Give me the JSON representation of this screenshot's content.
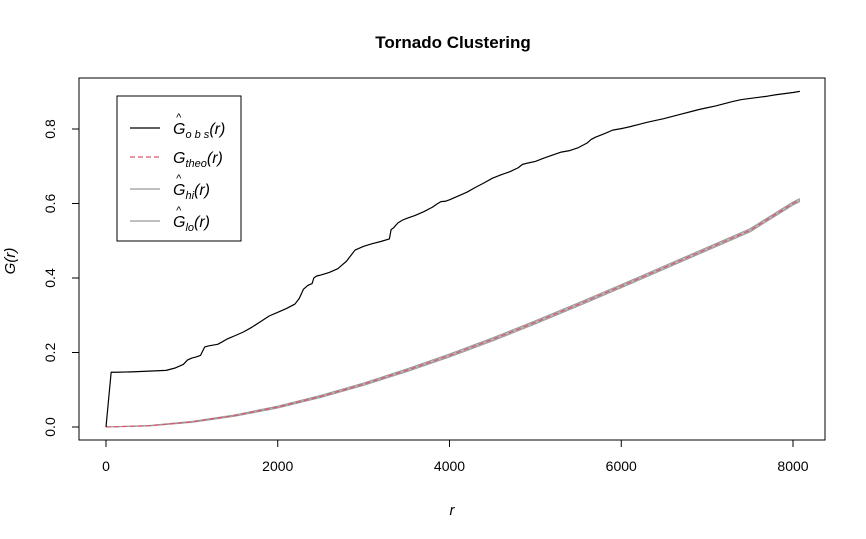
{
  "chart_data": {
    "type": "line",
    "title": "Tornado Clustering",
    "xlabel": "r",
    "ylabel": "G(r)",
    "xlim": [
      0,
      8100
    ],
    "ylim": [
      0,
      0.9
    ],
    "x_ticks": [
      0,
      2000,
      4000,
      6000,
      8000
    ],
    "y_ticks": [
      0.0,
      0.2,
      0.4,
      0.6,
      0.8
    ],
    "x_tick_labels": [
      "0",
      "2000",
      "4000",
      "6000",
      "8000"
    ],
    "y_tick_labels": [
      "0.0",
      "0.2",
      "0.4",
      "0.6",
      "0.8"
    ],
    "grid": false,
    "legend_position": "top-left",
    "legend": [
      {
        "hat": "^",
        "main": "G",
        "sub": "o b s",
        "arg": "(r)"
      },
      {
        "hat": "",
        "main": "G",
        "sub": "theo",
        "arg": "(r)"
      },
      {
        "hat": "^",
        "main": "G",
        "sub": "hi",
        "arg": "(r)"
      },
      {
        "hat": "^",
        "main": "G",
        "sub": "lo",
        "arg": "(r)"
      }
    ],
    "colors": {
      "obs": "#000000",
      "theo": "#df536b",
      "band": "#b8b8b8"
    },
    "series": [
      {
        "key": "obs",
        "style": "solid",
        "x": [
          0,
          60,
          120,
          300,
          500,
          700,
          800,
          900,
          950,
          1000,
          1050,
          1100,
          1150,
          1200,
          1300,
          1350,
          1400,
          1450,
          1500,
          1600,
          1700,
          1800,
          1900,
          2000,
          2100,
          2200,
          2250,
          2300,
          2350,
          2400,
          2420,
          2450,
          2500,
          2600,
          2700,
          2750,
          2800,
          2850,
          2900,
          2950,
          3000,
          3100,
          3200,
          3300,
          3320,
          3350,
          3400,
          3450,
          3500,
          3600,
          3700,
          3800,
          3850,
          3900,
          3950,
          4000,
          4100,
          4200,
          4300,
          4400,
          4500,
          4600,
          4700,
          4800,
          4850,
          4900,
          5000,
          5100,
          5200,
          5300,
          5400,
          5500,
          5550,
          5600,
          5650,
          5700,
          5800,
          5900,
          6000,
          6100,
          6200,
          6300,
          6400,
          6500,
          6600,
          6700,
          6800,
          6900,
          7000,
          7100,
          7200,
          7300,
          7400,
          7500,
          7600,
          7700,
          7800,
          7900,
          8000,
          8080
        ],
        "y": [
          0.0,
          0.147,
          0.147,
          0.148,
          0.15,
          0.152,
          0.158,
          0.168,
          0.18,
          0.185,
          0.188,
          0.192,
          0.215,
          0.218,
          0.222,
          0.228,
          0.235,
          0.24,
          0.245,
          0.255,
          0.268,
          0.283,
          0.298,
          0.308,
          0.318,
          0.33,
          0.345,
          0.37,
          0.38,
          0.385,
          0.4,
          0.405,
          0.408,
          0.415,
          0.425,
          0.435,
          0.445,
          0.46,
          0.475,
          0.48,
          0.485,
          0.492,
          0.498,
          0.505,
          0.53,
          0.535,
          0.548,
          0.555,
          0.56,
          0.568,
          0.578,
          0.59,
          0.598,
          0.605,
          0.606,
          0.61,
          0.62,
          0.63,
          0.643,
          0.655,
          0.668,
          0.677,
          0.685,
          0.696,
          0.705,
          0.708,
          0.713,
          0.722,
          0.73,
          0.738,
          0.742,
          0.75,
          0.756,
          0.762,
          0.772,
          0.778,
          0.787,
          0.797,
          0.801,
          0.806,
          0.812,
          0.818,
          0.823,
          0.828,
          0.834,
          0.84,
          0.846,
          0.852,
          0.857,
          0.862,
          0.868,
          0.874,
          0.879,
          0.882,
          0.885,
          0.888,
          0.892,
          0.895,
          0.898,
          0.901
        ]
      },
      {
        "key": "theo",
        "style": "dashed",
        "x": [
          0,
          500,
          1000,
          1500,
          2000,
          2500,
          3000,
          3500,
          4000,
          4500,
          5000,
          5500,
          6000,
          6500,
          7000,
          7500,
          8000,
          8080
        ],
        "y": [
          0.0,
          0.0034,
          0.0138,
          0.0307,
          0.0536,
          0.082,
          0.115,
          0.152,
          0.192,
          0.235,
          0.281,
          0.329,
          0.378,
          0.428,
          0.478,
          0.528,
          0.6,
          0.609
        ]
      },
      {
        "key": "hi",
        "style": "solid",
        "x": [
          0,
          500,
          1000,
          1500,
          2000,
          2500,
          3000,
          3500,
          4000,
          4500,
          5000,
          5500,
          6000,
          6500,
          7000,
          7500,
          8000,
          8080
        ],
        "y": [
          0.0,
          0.0042,
          0.0152,
          0.0327,
          0.0561,
          0.0849,
          0.1183,
          0.1557,
          0.1961,
          0.2393,
          0.2853,
          0.3333,
          0.3823,
          0.4323,
          0.4823,
          0.5323,
          0.6042,
          0.6132
        ]
      },
      {
        "key": "lo",
        "style": "solid",
        "x": [
          0,
          500,
          1000,
          1500,
          2000,
          2500,
          3000,
          3500,
          4000,
          4500,
          5000,
          5500,
          6000,
          6500,
          7000,
          7500,
          8000,
          8080
        ],
        "y": [
          0.0,
          0.0026,
          0.0124,
          0.0287,
          0.0511,
          0.0791,
          0.1117,
          0.1483,
          0.1879,
          0.2307,
          0.2767,
          0.3247,
          0.3737,
          0.4237,
          0.4737,
          0.5237,
          0.5958,
          0.6048
        ]
      }
    ]
  }
}
